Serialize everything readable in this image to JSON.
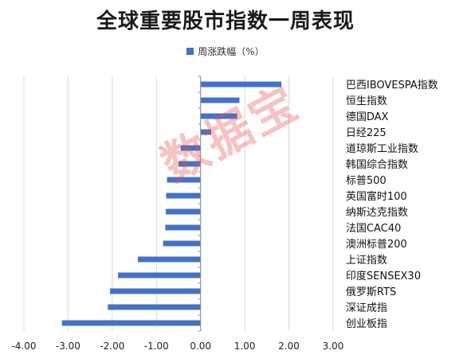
{
  "chart_data": {
    "type": "bar",
    "orientation": "horizontal",
    "title": "全球重要股市指数一周表现",
    "legend": {
      "position": "top",
      "entries": [
        "周涨跌幅（%）"
      ]
    },
    "categories": [
      "巴西IBOVESPA指数",
      "恒生指数",
      "德国DAX",
      "日经225",
      "道琼斯工业指数",
      "韩国综合指数",
      "标普500",
      "英国富时100",
      "纳斯达克指数",
      "法国CAC40",
      "澳洲标普200",
      "上证指数",
      "印度SENSEX30",
      "俄罗斯RTS",
      "深证成指",
      "创业板指"
    ],
    "series": [
      {
        "name": "周涨跌幅（%）",
        "values": [
          1.83,
          0.88,
          0.83,
          0.24,
          -0.45,
          -0.5,
          -0.76,
          -0.78,
          -0.79,
          -0.8,
          -0.85,
          -1.42,
          -1.87,
          -2.05,
          -2.1,
          -3.14
        ]
      }
    ],
    "x_ticks": [
      "-4.00",
      "-3.00",
      "-2.00",
      "-1.00",
      "0.00",
      "1.00",
      "2.00",
      "3.00"
    ],
    "xlim": [
      -4,
      3
    ],
    "grid": true
  },
  "colors": {
    "bar": "#4472C4",
    "grid": "#d9d9d9",
    "axis": "#8c8c8c"
  },
  "watermark": "数据宝"
}
